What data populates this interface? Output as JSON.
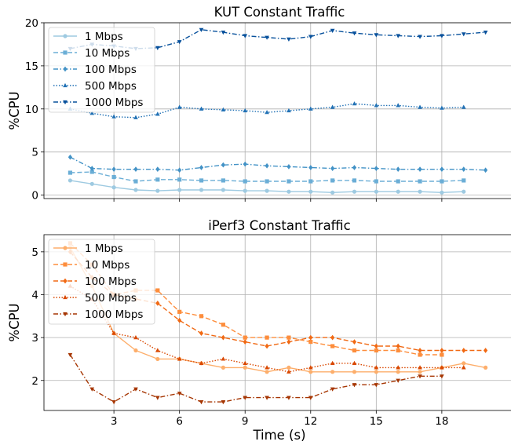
{
  "chart_data": [
    {
      "type": "line",
      "title": "KUT Constant Traffic",
      "xlabel": "",
      "ylabel": "%CPU",
      "xlim": [
        -0.2,
        21.2
      ],
      "ylim": [
        -0.4,
        20.0
      ],
      "xticks": [
        3,
        6,
        9,
        12,
        15,
        18
      ],
      "yticks": [
        0,
        5,
        10,
        15,
        20
      ],
      "xtick_labels_visible": false,
      "grid": true,
      "legend_position": "upper-left",
      "series": [
        {
          "name": "1 Mbps",
          "color": "#9ecae1",
          "style": "solid",
          "marker": "circle",
          "x": [
            1,
            2,
            3,
            4,
            5,
            6,
            7,
            8,
            9,
            10,
            11,
            12,
            13,
            14,
            15,
            16,
            17,
            18,
            19
          ],
          "y": [
            1.7,
            1.3,
            0.9,
            0.6,
            0.5,
            0.6,
            0.6,
            0.6,
            0.5,
            0.5,
            0.4,
            0.4,
            0.3,
            0.4,
            0.4,
            0.4,
            0.4,
            0.3,
            0.4
          ]
        },
        {
          "name": "10 Mbps",
          "color": "#6baed6",
          "style": "dashed",
          "marker": "square",
          "x": [
            1,
            2,
            3,
            4,
            5,
            6,
            7,
            8,
            9,
            10,
            11,
            12,
            13,
            14,
            15,
            16,
            17,
            18,
            19
          ],
          "y": [
            2.6,
            2.7,
            2.1,
            1.6,
            1.8,
            1.8,
            1.7,
            1.7,
            1.6,
            1.6,
            1.6,
            1.6,
            1.7,
            1.7,
            1.6,
            1.6,
            1.6,
            1.6,
            1.7
          ]
        },
        {
          "name": "100 Mbps",
          "color": "#4292c6",
          "style": "dashdot",
          "marker": "diamond",
          "x": [
            1,
            2,
            3,
            4,
            5,
            6,
            7,
            8,
            9,
            10,
            11,
            12,
            13,
            14,
            15,
            16,
            17,
            18,
            19,
            20
          ],
          "y": [
            4.4,
            3.1,
            3.0,
            3.0,
            3.0,
            2.9,
            3.2,
            3.5,
            3.6,
            3.4,
            3.3,
            3.2,
            3.1,
            3.2,
            3.1,
            3.0,
            3.0,
            3.0,
            3.0,
            2.9
          ]
        },
        {
          "name": "500 Mbps",
          "color": "#2171b5",
          "style": "dotted",
          "marker": "triangle-up",
          "x": [
            1,
            2,
            3,
            4,
            5,
            6,
            7,
            8,
            9,
            10,
            11,
            12,
            13,
            14,
            15,
            16,
            17,
            18,
            19
          ],
          "y": [
            10.0,
            9.5,
            9.1,
            9.0,
            9.4,
            10.2,
            10.0,
            9.9,
            9.8,
            9.6,
            9.8,
            10.0,
            10.2,
            10.6,
            10.4,
            10.4,
            10.2,
            10.1,
            10.2
          ]
        },
        {
          "name": "1000 Mbps",
          "color": "#08519c",
          "style": "dashdot",
          "marker": "triangle-down",
          "x": [
            1,
            2,
            3,
            4,
            5,
            6,
            7,
            8,
            9,
            10,
            11,
            12,
            13,
            14,
            15,
            16,
            17,
            18,
            19,
            20
          ],
          "y": [
            17.0,
            17.5,
            17.3,
            17.0,
            17.1,
            17.8,
            19.2,
            18.9,
            18.5,
            18.3,
            18.1,
            18.4,
            19.1,
            18.8,
            18.6,
            18.5,
            18.4,
            18.5,
            18.7,
            18.9
          ]
        }
      ]
    },
    {
      "type": "line",
      "title": "iPerf3 Constant Traffic",
      "xlabel": "Time (s)",
      "ylabel": "%CPU",
      "xlim": [
        -0.2,
        21.2
      ],
      "ylim": [
        1.3,
        5.4
      ],
      "xticks": [
        3,
        6,
        9,
        12,
        15,
        18
      ],
      "yticks": [
        2,
        3,
        4,
        5
      ],
      "grid": true,
      "legend_position": "upper-left",
      "series": [
        {
          "name": "1 Mbps",
          "color": "#fdae6b",
          "style": "solid",
          "marker": "circle",
          "x": [
            1,
            2,
            3,
            4,
            5,
            6,
            7,
            8,
            9,
            10,
            11,
            12,
            13,
            14,
            15,
            16,
            17,
            18,
            19,
            20
          ],
          "y": [
            5.1,
            4.2,
            3.1,
            2.7,
            2.5,
            2.5,
            2.4,
            2.3,
            2.3,
            2.2,
            2.3,
            2.2,
            2.2,
            2.2,
            2.2,
            2.2,
            2.2,
            2.3,
            2.4,
            2.3
          ]
        },
        {
          "name": "10 Mbps",
          "color": "#fd8d3c",
          "style": "dashed",
          "marker": "square",
          "x": [
            1,
            2,
            3,
            4,
            5,
            6,
            7,
            8,
            9,
            10,
            11,
            12,
            13,
            14,
            15,
            16,
            17,
            18
          ],
          "y": [
            5.2,
            4.7,
            4.0,
            4.1,
            4.1,
            3.6,
            3.5,
            3.3,
            3.0,
            3.0,
            3.0,
            2.9,
            2.8,
            2.7,
            2.7,
            2.7,
            2.6,
            2.6
          ]
        },
        {
          "name": "100 Mbps",
          "color": "#f16913",
          "style": "dashed",
          "marker": "diamond",
          "x": [
            1,
            2,
            3,
            4,
            5,
            6,
            7,
            8,
            9,
            10,
            11,
            12,
            13,
            14,
            15,
            16,
            17,
            18,
            19,
            20
          ],
          "y": [
            5.0,
            4.4,
            4.0,
            3.9,
            3.8,
            3.4,
            3.1,
            3.0,
            2.9,
            2.8,
            2.9,
            3.0,
            3.0,
            2.9,
            2.8,
            2.8,
            2.7,
            2.7,
            2.7,
            2.7
          ]
        },
        {
          "name": "500 Mbps",
          "color": "#d94801",
          "style": "dotted",
          "marker": "triangle-up",
          "x": [
            1,
            2,
            3,
            4,
            5,
            6,
            7,
            8,
            9,
            10,
            11,
            12,
            13,
            14,
            15,
            16,
            17,
            18,
            19
          ],
          "y": [
            4.2,
            3.9,
            3.1,
            3.0,
            2.7,
            2.5,
            2.4,
            2.5,
            2.4,
            2.3,
            2.2,
            2.3,
            2.4,
            2.4,
            2.3,
            2.3,
            2.3,
            2.3,
            2.3
          ]
        },
        {
          "name": "1000 Mbps",
          "color": "#a63603",
          "style": "dashdot",
          "marker": "triangle-down",
          "x": [
            1,
            2,
            3,
            4,
            5,
            6,
            7,
            8,
            9,
            10,
            11,
            12,
            13,
            14,
            15,
            16,
            17,
            18
          ],
          "y": [
            2.6,
            1.8,
            1.5,
            1.8,
            1.6,
            1.7,
            1.5,
            1.5,
            1.6,
            1.6,
            1.6,
            1.6,
            1.8,
            1.9,
            1.9,
            2.0,
            2.1,
            2.1
          ]
        }
      ]
    }
  ]
}
